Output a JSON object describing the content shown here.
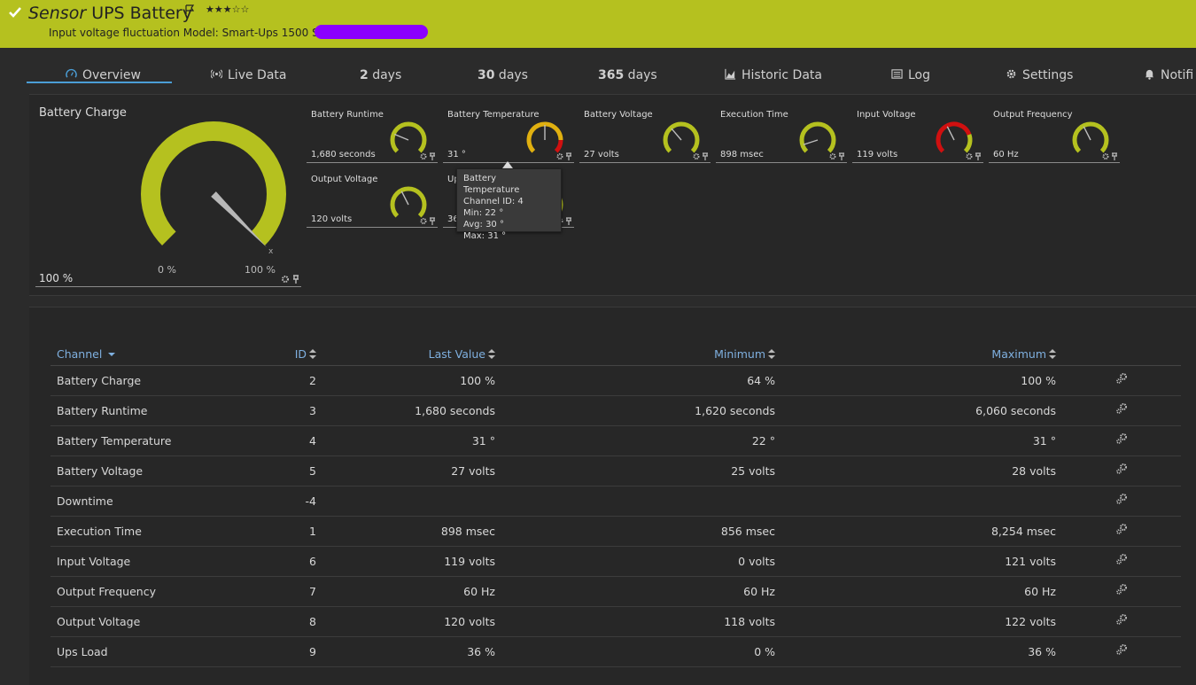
{
  "header": {
    "kind": "Sensor",
    "name": "UPS Battery",
    "stars": "★★★☆☆",
    "subtitle": "Input voltage fluctuation Model: Smart-Ups 1500 Serial:"
  },
  "tabs": [
    {
      "label": "Overview",
      "icon": "gauge-icon",
      "active": true
    },
    {
      "label": "Live Data",
      "icon": "broadcast-icon"
    },
    {
      "bold": "2",
      "label": " days"
    },
    {
      "bold": "30",
      "label": " days"
    },
    {
      "bold": "365",
      "label": " days"
    },
    {
      "label": "Historic Data",
      "icon": "area-chart-icon"
    },
    {
      "label": "Log",
      "icon": "list-icon"
    },
    {
      "label": "Settings",
      "icon": "gear-icon"
    },
    {
      "label": "Notifi",
      "icon": "bell-icon"
    }
  ],
  "big_gauge": {
    "title": "Battery Charge",
    "value": "100 %",
    "fraction": 1.0,
    "min_label": "0 %",
    "max_label": "100 %",
    "x_label": "x"
  },
  "small_gauges": [
    {
      "title": "Battery Runtime",
      "value": "1,680 seconds",
      "fraction": 0.25,
      "style": "green"
    },
    {
      "title": "Battery Temperature",
      "value": "31 °",
      "fraction": 0.5,
      "style": "warn"
    },
    {
      "title": "Battery Voltage",
      "value": "27 volts",
      "fraction": 0.35,
      "style": "green"
    },
    {
      "title": "Execution Time",
      "value": "898 msec",
      "fraction": 0.1,
      "style": "green"
    },
    {
      "title": "Input Voltage",
      "value": "119 volts",
      "fraction": 0.4,
      "style": "red"
    },
    {
      "title": "Output Frequency",
      "value": "60 Hz",
      "fraction": 0.4,
      "style": "green"
    },
    {
      "title": "Output Voltage",
      "value": "120 volts",
      "fraction": 0.4,
      "style": "green"
    },
    {
      "title": "Ups Load",
      "value": "36 %",
      "fraction": 0.36,
      "style": "green"
    }
  ],
  "tooltip": {
    "title": "Battery Temperature",
    "channel": "Channel ID: 4",
    "min": "Min: 22 °",
    "avg": "Avg: 30 °",
    "max": "Max: 31 °"
  },
  "table": {
    "headers": {
      "channel": "Channel",
      "id": "ID",
      "last": "Last Value",
      "min": "Minimum",
      "max": "Maximum"
    },
    "rows": [
      {
        "channel": "Battery Charge",
        "id": "2",
        "last": "100 %",
        "min": "64 %",
        "max": "100 %"
      },
      {
        "channel": "Battery Runtime",
        "id": "3",
        "last": "1,680 seconds",
        "min": "1,620 seconds",
        "max": "6,060 seconds"
      },
      {
        "channel": "Battery Temperature",
        "id": "4",
        "last": "31 °",
        "min": "22 °",
        "max": "31 °"
      },
      {
        "channel": "Battery Voltage",
        "id": "5",
        "last": "27 volts",
        "min": "25 volts",
        "max": "28 volts"
      },
      {
        "channel": "Downtime",
        "id": "-4",
        "last": "",
        "min": "",
        "max": ""
      },
      {
        "channel": "Execution Time",
        "id": "1",
        "last": "898 msec",
        "min": "856 msec",
        "max": "8,254 msec"
      },
      {
        "channel": "Input Voltage",
        "id": "6",
        "last": "119 volts",
        "min": "0 volts",
        "max": "121 volts"
      },
      {
        "channel": "Output Frequency",
        "id": "7",
        "last": "60 Hz",
        "min": "60 Hz",
        "max": "60 Hz"
      },
      {
        "channel": "Output Voltage",
        "id": "8",
        "last": "120 volts",
        "min": "118 volts",
        "max": "122 volts"
      },
      {
        "channel": "Ups Load",
        "id": "9",
        "last": "36 %",
        "min": "0 %",
        "max": "36 %"
      }
    ]
  },
  "colors": {
    "accent": "#b5c11f",
    "link": "#7fb0e0",
    "warn": "#e0b010",
    "danger": "#d01010"
  }
}
